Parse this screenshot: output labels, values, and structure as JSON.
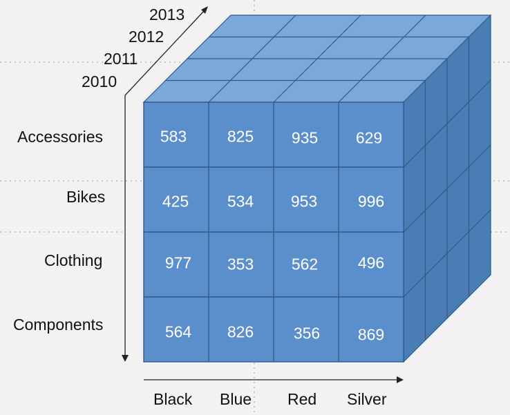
{
  "cube": {
    "years": [
      "2010",
      "2011",
      "2012",
      "2013"
    ],
    "categories": [
      "Accessories",
      "Bikes",
      "Clothing",
      "Components"
    ],
    "colors": [
      "Black",
      "Blue",
      "Red",
      "Silver"
    ],
    "values": [
      [
        583,
        825,
        935,
        629
      ],
      [
        425,
        534,
        953,
        996
      ],
      [
        977,
        353,
        562,
        496
      ],
      [
        564,
        826,
        356,
        869
      ]
    ]
  },
  "style": {
    "front": "#5b8fcc",
    "top": "#7aa8d8",
    "side": "#4a7db3",
    "edge": "#2f5a87",
    "axis": "#222222"
  }
}
